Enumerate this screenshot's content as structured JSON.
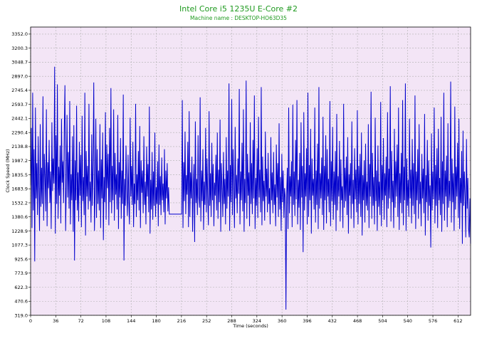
{
  "chart_data": {
    "type": "line",
    "title": "Intel Core i5 1235U E-Core #2",
    "subtitle": "Machine name : DESKTOP-HO63D35",
    "xlabel": "Time (seconds)",
    "ylabel": "Clock Speed (MHz)",
    "xlim": [
      0,
      630
    ],
    "ylim": [
      319.0,
      3428.0
    ],
    "x_ticks": [
      0,
      36,
      72,
      108,
      144,
      180,
      216,
      252,
      288,
      324,
      360,
      396,
      432,
      468,
      504,
      540,
      576,
      612
    ],
    "y_ticks": [
      319.0,
      470.6,
      622.3,
      773.9,
      925.6,
      1077.3,
      1228.9,
      1380.6,
      1532.2,
      1683.9,
      1835.5,
      1987.2,
      2138.8,
      2290.4,
      2442.1,
      2593.7,
      2745.4,
      2897.0,
      3048.7,
      3200.3,
      3352.0
    ],
    "grid": true,
    "background_color": "#f3e5f6",
    "grid_color": "#b0b0b0",
    "line_color": "#0000cc",
    "title_color": "#1f9a1f",
    "series": [
      {
        "values": [
          1720,
          2340,
          1260,
          2720,
          1450,
          2110,
          900,
          2560,
          1580,
          1960,
          1400,
          2250,
          1700,
          1230,
          2380,
          1490,
          1910,
          1520,
          2680,
          1340,
          2060,
          1810,
          1440,
          2540,
          1280,
          1970,
          1690,
          2210,
          1530,
          1870,
          1250,
          2400,
          1660,
          2010,
          1740,
          3000,
          1200,
          2260,
          1520,
          2810,
          1360,
          1920,
          1610,
          2150,
          1310,
          2440,
          1750,
          1980,
          1530,
          2300,
          2800,
          1230,
          1700,
          2480,
          1590,
          2080,
          1470,
          2630,
          1300,
          1840,
          1560,
          2250,
          1220,
          2370,
          910,
          1990,
          1560,
          2580,
          1450,
          1860,
          1330,
          2190,
          1610,
          2050,
          1270,
          2470,
          1550,
          1810,
          1400,
          2720,
          1180,
          2090,
          1600,
          1930,
          1460,
          2600,
          1550,
          1760,
          1320,
          2270,
          1500,
          1940,
          2830,
          1230,
          1660,
          2440,
          1370,
          2110,
          1520,
          1880,
          1450,
          2380,
          1260,
          2000,
          1580,
          2290,
          1130,
          1810,
          1540,
          2510,
          1350,
          2160,
          1690,
          2060,
          1290,
          2340,
          1540,
          2770,
          1420,
          1930,
          1560,
          2540,
          1340,
          2070,
          1620,
          1840,
          1460,
          2480,
          1250,
          1970,
          1590,
          2230,
          1360,
          1880,
          1520,
          2700,
          910,
          1790,
          1500,
          2150,
          1680,
          1390,
          2050,
          1560,
          1300,
          2450,
          1600,
          1930,
          1510,
          2190,
          1270,
          1740,
          1520,
          2600,
          1380,
          1840,
          1560,
          2090,
          1450,
          2360,
          1260,
          1990,
          1640,
          1880,
          1420,
          2250,
          1510,
          1760,
          1300,
          2140,
          1600,
          1950,
          1430,
          2570,
          1200,
          1780,
          1460,
          2080,
          1350,
          1870,
          1500,
          2290,
          1380,
          1700,
          1520,
          1980,
          1280,
          2160,
          1510,
          1820,
          1400,
          2020,
          1560,
          1740,
          1430,
          2110,
          1300,
          1880,
          1580,
          1960,
          1440,
          1700,
          1410,
          1410,
          1410,
          1410,
          1410,
          1410,
          1410,
          1410,
          1410,
          1410,
          1410,
          1410,
          1410,
          1410,
          1410,
          1410,
          1410,
          1410,
          1410,
          2640,
          1260,
          1970,
          1550,
          2300,
          1410,
          1830,
          1620,
          2190,
          1270,
          2520,
          1380,
          1860,
          1580,
          2030,
          1220,
          1700,
          1950,
          1110,
          2410,
          1530,
          1790,
          1400,
          2260,
          1590,
          1480,
          2670,
          1330,
          1880,
          1550,
          2110,
          1240,
          1760,
          1510,
          2340,
          1430,
          2010,
          1600,
          1290,
          2520,
          1500,
          1850,
          1380,
          2180,
          1560,
          1950,
          1280,
          1750,
          1610,
          2050,
          1450,
          2290,
          1360,
          1890,
          1540,
          2430,
          1220,
          1960,
          1700,
          1380,
          2080,
          1520,
          1790,
          1300,
          2240,
          1470,
          1880,
          1600,
          2820,
          1230,
          1940,
          1540,
          2650,
          1400,
          2110,
          1690,
          1260,
          2350,
          1580,
          1830,
          1420,
          2010,
          1630,
          2760,
          1300,
          1870,
          1560,
          2180,
          1440,
          2540,
          1220,
          1790,
          1530,
          2850,
          1360,
          2060,
          1610,
          1860,
          1280,
          2400,
          1520,
          1960,
          1410,
          2210,
          1580,
          2690,
          1250,
          1800,
          1500,
          2120,
          1370,
          2460,
          1590,
          1890,
          1430,
          2780,
          1290,
          2030,
          1550,
          1770,
          1340,
          2300,
          1600,
          1900,
          1430,
          2070,
          1520,
          1690,
          1300,
          2240,
          1560,
          1860,
          1420,
          2080,
          1510,
          1730,
          1280,
          2160,
          1590,
          1960,
          1380,
          2390,
          1460,
          1810,
          1230,
          2060,
          1540,
          1880,
          1370,
          1690,
          1590,
          380,
          1620,
          1910,
          1250,
          2560,
          1420,
          1820,
          1600,
          1980,
          1270,
          2590,
          1510,
          1870,
          1390,
          2210,
          1570,
          2640,
          1300,
          1780,
          1480,
          2070,
          1240,
          2400,
          1590,
          1930,
          1000,
          2510,
          1450,
          1850,
          1600,
          2120,
          1300,
          2720,
          1380,
          1940,
          1560,
          2330,
          1200,
          2010,
          1610,
          1790,
          1460,
          2560,
          1320,
          1880,
          1510,
          2170,
          1250,
          2780,
          1470,
          1850,
          1580,
          2020,
          1400,
          2460,
          1240,
          1930,
          1560,
          2260,
          1310,
          2110,
          1600,
          1790,
          1430,
          2630,
          1280,
          1980,
          1550,
          2350,
          1350,
          1870,
          1510,
          2090,
          1230,
          2490,
          1450,
          1820,
          1600,
          2200,
          1330,
          2000,
          1560,
          1710,
          1260,
          2600,
          1480,
          1910,
          1550,
          2030,
          1400,
          2240,
          1200,
          1840,
          1610,
          1960,
          1360,
          2410,
          1520,
          1780,
          1260,
          2120,
          1570,
          1890,
          1430,
          2530,
          1300,
          1930,
          1520,
          2060,
          1380,
          2290,
          1180,
          1830,
          1560,
          1990,
          1320,
          2170,
          1500,
          1760,
          1450,
          2380,
          1260,
          1950,
          1600,
          2730,
          1360,
          2070,
          1500,
          1810,
          1300,
          2450,
          1550,
          1880,
          1230,
          2150,
          1490,
          1760,
          1400,
          2620,
          1280,
          1940,
          1560,
          2230,
          1350,
          1850,
          1610,
          2030,
          1270,
          2510,
          1470,
          1900,
          1580,
          2790,
          1330,
          2090,
          1540,
          1770,
          1260,
          2330,
          1480,
          1980,
          1600,
          2160,
          1380,
          2560,
          1240,
          1850,
          1530,
          2070,
          1420,
          2640,
          1290,
          1920,
          1560,
          2820,
          1230,
          2010,
          1500,
          1780,
          1380,
          2440,
          1580,
          1890,
          1310,
          2220,
          1500,
          1960,
          1410,
          2690,
          1250,
          1870,
          1560,
          2110,
          1360,
          2380,
          1520,
          1760,
          1280,
          2060,
          1580,
          1900,
          1420,
          2490,
          1180,
          1830,
          1540,
          2210,
          1340,
          1990,
          1500,
          1720,
          1050,
          2280,
          1450,
          1870,
          1570,
          2560,
          1310,
          1940,
          1500,
          2120,
          1260,
          2330,
          1560,
          1800,
          1400,
          2460,
          1220,
          1980,
          1520,
          2720,
          1340,
          1880,
          1600,
          2040,
          1270,
          2390,
          1480,
          1770,
          1550,
          2840,
          1320,
          2010,
          1540,
          1850,
          1230,
          2570,
          1460,
          1920,
          1600,
          2180,
          1370,
          2440,
          1250,
          1800,
          1530,
          2090,
          1090,
          2310,
          1500,
          1870,
          1600,
          1160,
          2220,
          1470,
          1800,
          1260,
          1160,
          1580,
          1090
        ]
      }
    ]
  }
}
